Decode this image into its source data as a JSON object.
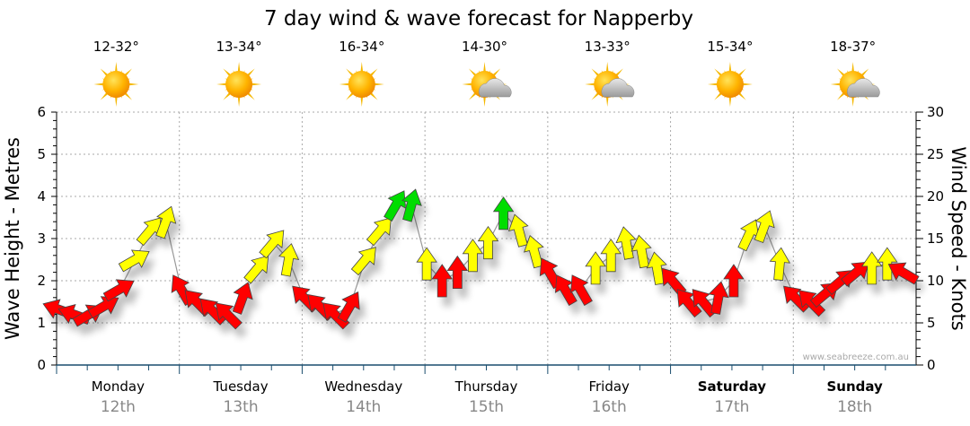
{
  "chart_data": {
    "type": "wind-arrows",
    "title": "7 day wind & wave forecast for Napperby",
    "ylabel_left": "Wave Height - Metres",
    "ylabel_right": "Wind Speed - Knots",
    "ylim_left": [
      0,
      6
    ],
    "ylim_right": [
      0,
      30
    ],
    "yticks_left": [
      "0",
      "1",
      "2",
      "3",
      "4",
      "5",
      "6"
    ],
    "yticks_right": [
      "0",
      "5",
      "10",
      "15",
      "20",
      "25",
      "30"
    ],
    "grid": true,
    "watermark": "www.seabreeze.com.au",
    "days": [
      {
        "name": "Monday",
        "date": "12th",
        "temp": "12-32°",
        "icon": "sunny",
        "bold": false
      },
      {
        "name": "Tuesday",
        "date": "13th",
        "temp": "13-34°",
        "icon": "sunny",
        "bold": false
      },
      {
        "name": "Wednesday",
        "date": "14th",
        "temp": "16-34°",
        "icon": "sunny",
        "bold": false
      },
      {
        "name": "Thursday",
        "date": "15th",
        "temp": "14-30°",
        "icon": "partly-cloudy",
        "bold": false
      },
      {
        "name": "Friday",
        "date": "16th",
        "temp": "13-33°",
        "icon": "partly-cloudy",
        "bold": false
      },
      {
        "name": "Saturday",
        "date": "17th",
        "temp": "15-34°",
        "icon": "sunny",
        "bold": true
      },
      {
        "name": "Sunday",
        "date": "18th",
        "temp": "18-37°",
        "icon": "partly-cloudy",
        "bold": true
      }
    ],
    "wind_colors": {
      "light": "#ff0000",
      "moderate": "#ffff00",
      "strong": "#00dd00"
    },
    "wind_thresholds_knots": [
      11.3,
      18
    ],
    "wind_series": {
      "hours": [
        0,
        3,
        6,
        9,
        12,
        15,
        18,
        21,
        24,
        27,
        30,
        33,
        36,
        39,
        42,
        45,
        48,
        51,
        54,
        57,
        60,
        63,
        66,
        69,
        72,
        75,
        78,
        81,
        84,
        87,
        90,
        93,
        96,
        99,
        102,
        105,
        108,
        111,
        114,
        117,
        120,
        123,
        126,
        129,
        132,
        135,
        138,
        141,
        144,
        147,
        150,
        153,
        156,
        159,
        162,
        165
      ],
      "knots": [
        6.6,
        6,
        6,
        7,
        9,
        12.5,
        16,
        17,
        9,
        7.5,
        6.5,
        6,
        8,
        11.5,
        14.5,
        12.5,
        8,
        7,
        6,
        7,
        12.5,
        16,
        19,
        19,
        12,
        10,
        11,
        13,
        14.5,
        18,
        16,
        13.5,
        11,
        9,
        9,
        11.5,
        13,
        14.5,
        13.5,
        11.5,
        10,
        7.5,
        7.5,
        8,
        10,
        15.5,
        16.5,
        12,
        8,
        7.5,
        8.5,
        10,
        11,
        11.5,
        12,
        11
      ],
      "direction_deg": [
        290,
        290,
        60,
        60,
        60,
        60,
        40,
        20,
        330,
        315,
        315,
        315,
        20,
        40,
        40,
        10,
        315,
        315,
        315,
        30,
        40,
        40,
        30,
        15,
        0,
        0,
        0,
        0,
        0,
        0,
        345,
        345,
        330,
        330,
        330,
        0,
        0,
        350,
        350,
        350,
        320,
        320,
        320,
        10,
        0,
        25,
        20,
        5,
        315,
        315,
        50,
        50,
        50,
        0,
        0,
        300
      ]
    }
  }
}
